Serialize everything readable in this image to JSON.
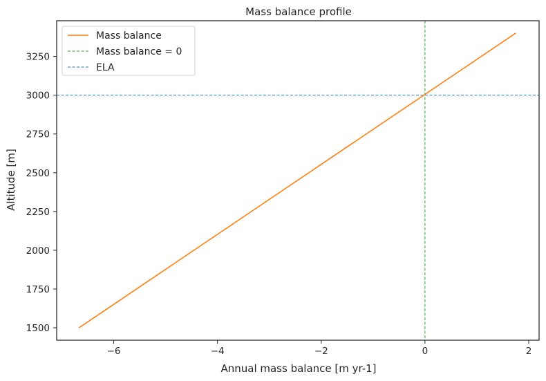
{
  "chart_data": {
    "type": "line",
    "title": "Mass balance profile",
    "xlabel": "Annual mass balance [m yr-1]",
    "ylabel": "Altitude [m]",
    "xlim": [
      -7.1,
      2.2
    ],
    "ylim": [
      1420,
      3480
    ],
    "xticks": [
      -6,
      -4,
      -2,
      0,
      2
    ],
    "xtick_labels": [
      "−6",
      "−4",
      "−2",
      "0",
      "2"
    ],
    "yticks": [
      1500,
      1750,
      2000,
      2250,
      2500,
      2750,
      3000,
      3250
    ],
    "ytick_labels": [
      "1500",
      "1750",
      "2000",
      "2250",
      "2500",
      "2750",
      "3000",
      "3250"
    ],
    "grid": false,
    "legend_position": "top-left",
    "series": [
      {
        "name": "Mass balance",
        "color": "#ff7f0e",
        "style": "solid",
        "x": [
          -6.67,
          1.75
        ],
        "y": [
          1500,
          3400
        ]
      }
    ],
    "reference_lines": [
      {
        "name": "Mass balance = 0",
        "orientation": "vertical",
        "value": 0,
        "color": "#2ca02c",
        "style": "dashed"
      },
      {
        "name": "ELA",
        "orientation": "horizontal",
        "value": 3000,
        "color": "#1f77b4",
        "style": "dashed"
      }
    ]
  }
}
